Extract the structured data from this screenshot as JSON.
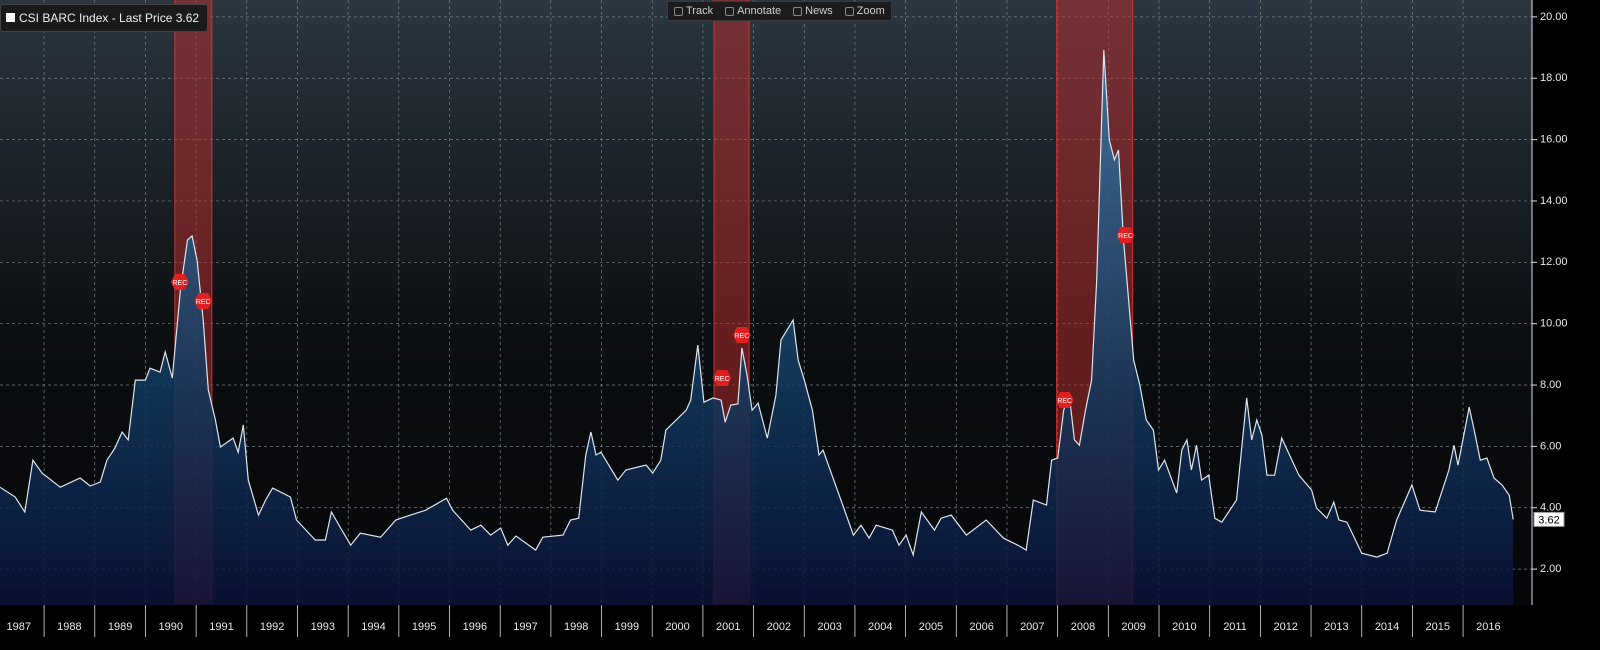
{
  "chart_data": {
    "type": "area",
    "legend_label": "CSI BARC Index - Last Price 3.62",
    "last_price": 3.62,
    "toolbar": [
      "Track",
      "Annotate",
      "News",
      "Zoom"
    ],
    "series": [
      {
        "name": "CSI BARC Index",
        "color": "#dce6ee",
        "values": [
          4.67,
          4.35,
          3.86,
          5.55,
          5.13,
          4.67,
          4.97,
          4.71,
          4.84,
          5.55,
          5.95,
          6.47,
          6.21,
          8.16,
          8.16,
          8.55,
          8.42,
          9.08,
          8.23,
          11.1,
          12.73,
          12.86,
          12.07,
          10.12,
          7.84,
          6.86,
          5.98,
          6.27,
          5.81,
          6.7,
          4.9,
          3.76,
          4.25,
          4.64,
          4.35,
          3.6,
          2.95,
          2.95,
          3.86,
          3.34,
          2.78,
          3.17,
          3.04,
          3.6,
          3.76,
          3.92,
          4.31,
          3.92,
          3.27,
          3.43,
          3.11,
          3.34,
          2.78,
          3.08,
          2.62,
          3.04,
          3.11,
          3.6,
          3.66,
          5.72,
          6.47,
          5.72,
          5.81,
          4.9,
          5.23,
          5.39,
          5.13,
          5.55,
          6.53,
          7.18,
          7.51,
          9.3,
          7.44,
          7.58,
          7.51,
          6.79,
          7.35,
          7.38,
          9.21,
          8.33,
          7.18,
          7.41,
          6.27,
          7.67,
          9.47,
          10.12,
          8.81,
          8.16,
          7.18,
          5.72,
          5.88,
          4.41,
          3.11,
          3.43,
          3.01,
          3.43,
          3.27,
          2.78,
          3.11,
          2.46,
          3.86,
          3.27,
          3.66,
          3.76,
          3.11,
          3.6,
          3.01,
          2.75,
          2.62,
          4.25,
          4.09,
          5.55,
          5.62,
          7.18,
          7.67,
          6.21,
          6.04,
          7.18,
          8.16,
          11.42,
          18.92,
          15.99,
          15.34,
          15.66,
          12.73,
          10.77,
          8.81,
          8.0,
          6.86,
          6.53,
          5.23,
          5.55,
          4.48,
          5.88,
          6.21,
          5.23,
          6.04,
          4.9,
          5.06,
          3.66,
          3.53,
          4.25,
          7.58,
          6.21,
          6.86,
          6.37,
          5.06,
          5.06,
          6.27,
          5.06,
          4.58,
          3.99,
          3.66,
          4.18,
          3.6,
          3.53,
          2.52,
          2.39,
          2.52,
          3.6,
          4.74,
          3.92,
          3.86,
          5.23,
          6.04,
          5.39,
          7.28,
          6.53,
          5.55,
          5.62,
          4.97,
          4.74,
          4.41,
          3.62
        ]
      }
    ],
    "x": [
      1987.13,
      1987.43,
      1987.62,
      1987.78,
      1987.96,
      1988.32,
      1988.71,
      1988.91,
      1989.11,
      1989.24,
      1989.4,
      1989.54,
      1989.66,
      1989.8,
      1990.0,
      1990.09,
      1990.29,
      1990.39,
      1990.53,
      1990.69,
      1990.83,
      1990.92,
      1991.02,
      1991.14,
      1991.24,
      1991.38,
      1991.48,
      1991.73,
      1991.83,
      1991.93,
      1992.03,
      1992.23,
      1992.37,
      1992.51,
      1992.86,
      1992.98,
      1993.35,
      1993.55,
      1993.67,
      1993.85,
      1994.05,
      1994.24,
      1994.64,
      1994.94,
      1995.23,
      1995.53,
      1995.94,
      1996.06,
      1996.42,
      1996.62,
      1996.81,
      1997.01,
      1997.15,
      1997.31,
      1997.7,
      1997.84,
      1998.24,
      1998.39,
      1998.55,
      1998.69,
      1998.79,
      1998.89,
      1998.99,
      1999.32,
      1999.48,
      1999.88,
      2000.01,
      2000.17,
      2000.27,
      2000.67,
      2000.76,
      2000.9,
      2001.02,
      2001.2,
      2001.36,
      2001.44,
      2001.55,
      2001.69,
      2001.77,
      2001.87,
      2001.97,
      2002.09,
      2002.27,
      2002.44,
      2002.54,
      2002.78,
      2002.88,
      2003.0,
      2003.16,
      2003.29,
      2003.37,
      2003.69,
      2003.97,
      2004.12,
      2004.28,
      2004.42,
      2004.74,
      2004.87,
      2005.01,
      2005.15,
      2005.31,
      2005.57,
      2005.7,
      2005.9,
      2006.2,
      2006.59,
      2006.93,
      2007.25,
      2007.38,
      2007.52,
      2007.78,
      2007.88,
      2008.0,
      2008.12,
      2008.23,
      2008.33,
      2008.43,
      2008.55,
      2008.67,
      2008.77,
      2008.91,
      2009.02,
      2009.12,
      2009.2,
      2009.3,
      2009.4,
      2009.5,
      2009.62,
      2009.75,
      2009.89,
      2009.99,
      2010.11,
      2010.35,
      2010.45,
      2010.55,
      2010.64,
      2010.74,
      2010.84,
      2010.98,
      2011.1,
      2011.24,
      2011.53,
      2011.73,
      2011.83,
      2011.93,
      2012.03,
      2012.13,
      2012.28,
      2012.42,
      2012.76,
      2013.01,
      2013.11,
      2013.31,
      2013.45,
      2013.55,
      2013.71,
      2014.0,
      2014.3,
      2014.5,
      2014.69,
      2014.99,
      2015.15,
      2015.45,
      2015.72,
      2015.82,
      2015.9,
      2016.12,
      2016.22,
      2016.34,
      2016.47,
      2016.61,
      2016.77,
      2016.91,
      2016.99
    ],
    "recessions": [
      [
        1990.58,
        1991.31
      ],
      [
        2001.22,
        2001.91
      ],
      [
        2007.98,
        2009.48
      ]
    ],
    "annotations": [
      {
        "x": 1990.66,
        "y": 11.36,
        "label": "REC"
      },
      {
        "x": 1991.12,
        "y": 10.74,
        "label": "REC"
      },
      {
        "x": 2001.36,
        "y": 8.23,
        "label": "REC"
      },
      {
        "x": 2001.75,
        "y": 9.63,
        "label": "REC"
      },
      {
        "x": 2008.12,
        "y": 7.51,
        "label": "REC"
      },
      {
        "x": 2009.32,
        "y": 12.89,
        "label": "REC"
      }
    ],
    "xlim": [
      1987.13,
      2017.36
    ],
    "ylim": [
      0.83,
      20.55
    ],
    "xticks": [
      1987,
      1988,
      1989,
      1990,
      1991,
      1992,
      1993,
      1994,
      1995,
      1996,
      1997,
      1998,
      1999,
      2000,
      2001,
      2002,
      2003,
      2004,
      2005,
      2006,
      2007,
      2008,
      2009,
      2010,
      2011,
      2012,
      2013,
      2014,
      2015,
      2016
    ],
    "yticks": [
      {
        "value": 2,
        "label": "2.00"
      },
      {
        "value": 4,
        "label": "4.00"
      },
      {
        "value": 6,
        "label": "6.00"
      },
      {
        "value": 8,
        "label": "8.00"
      },
      {
        "value": 10,
        "label": "10.00"
      },
      {
        "value": 12,
        "label": "12.00"
      },
      {
        "value": 14,
        "label": "14.00"
      },
      {
        "value": 16,
        "label": "16.00"
      },
      {
        "value": 18,
        "label": "18.00"
      },
      {
        "value": 20,
        "label": "20.00"
      }
    ],
    "grid": true
  }
}
